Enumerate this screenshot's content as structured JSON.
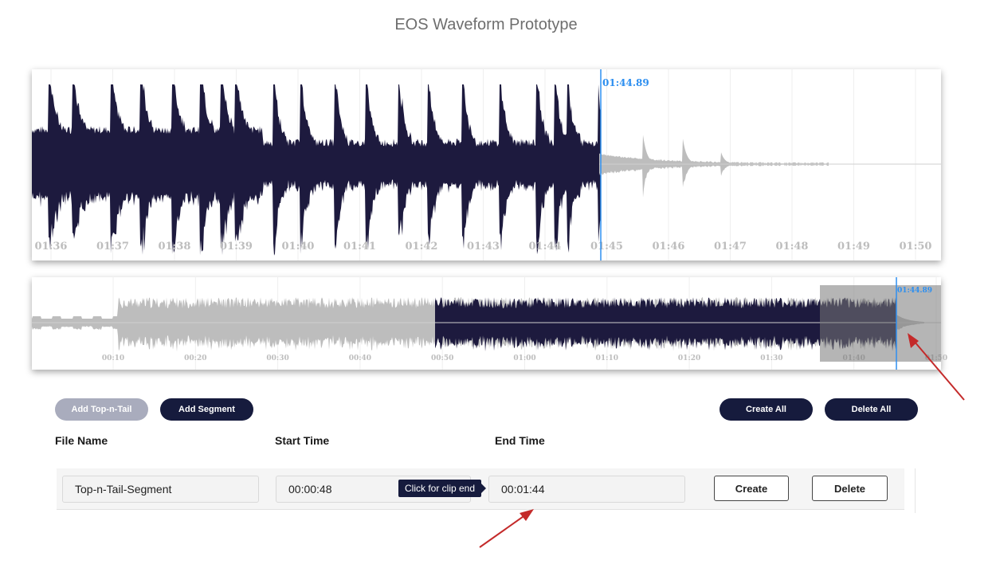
{
  "title": "EOS Waveform Prototype",
  "colors": {
    "played": "#1d1a3e",
    "unplayed": "#bdbdbd",
    "cursor": "#2d8ff0",
    "button_dark": "#161b3d",
    "button_disabled": "#a9acbd",
    "annotation_arrow": "#c42a2a"
  },
  "main_waveform": {
    "cursor_time": "01:44.89",
    "tick_labels": [
      "01:36",
      "01:37",
      "01:38",
      "01:39",
      "01:40",
      "01:41",
      "01:42",
      "01:43",
      "01:44",
      "01:45",
      "01:46",
      "01:47",
      "01:48",
      "01:49",
      "01:50"
    ]
  },
  "overview_waveform": {
    "cursor_time": "01:44.89",
    "tick_labels": [
      "00:10",
      "00:20",
      "00:30",
      "00:40",
      "00:50",
      "01:00",
      "01:10",
      "01:20",
      "01:30",
      "01:40",
      "01:50"
    ]
  },
  "toolbar": {
    "add_top_n_tail": "Add Top-n-Tail",
    "add_segment": "Add Segment",
    "create_all": "Create All",
    "delete_all": "Delete All"
  },
  "columns": {
    "file_name": "File Name",
    "start_time": "Start Time",
    "end_time": "End Time"
  },
  "segments": [
    {
      "file_name": "Top-n-Tail-Segment",
      "start_time": "00:00:48",
      "end_time": "00:01:44",
      "create_label": "Create",
      "delete_label": "Delete"
    }
  ],
  "tooltip": "Click for clip end"
}
